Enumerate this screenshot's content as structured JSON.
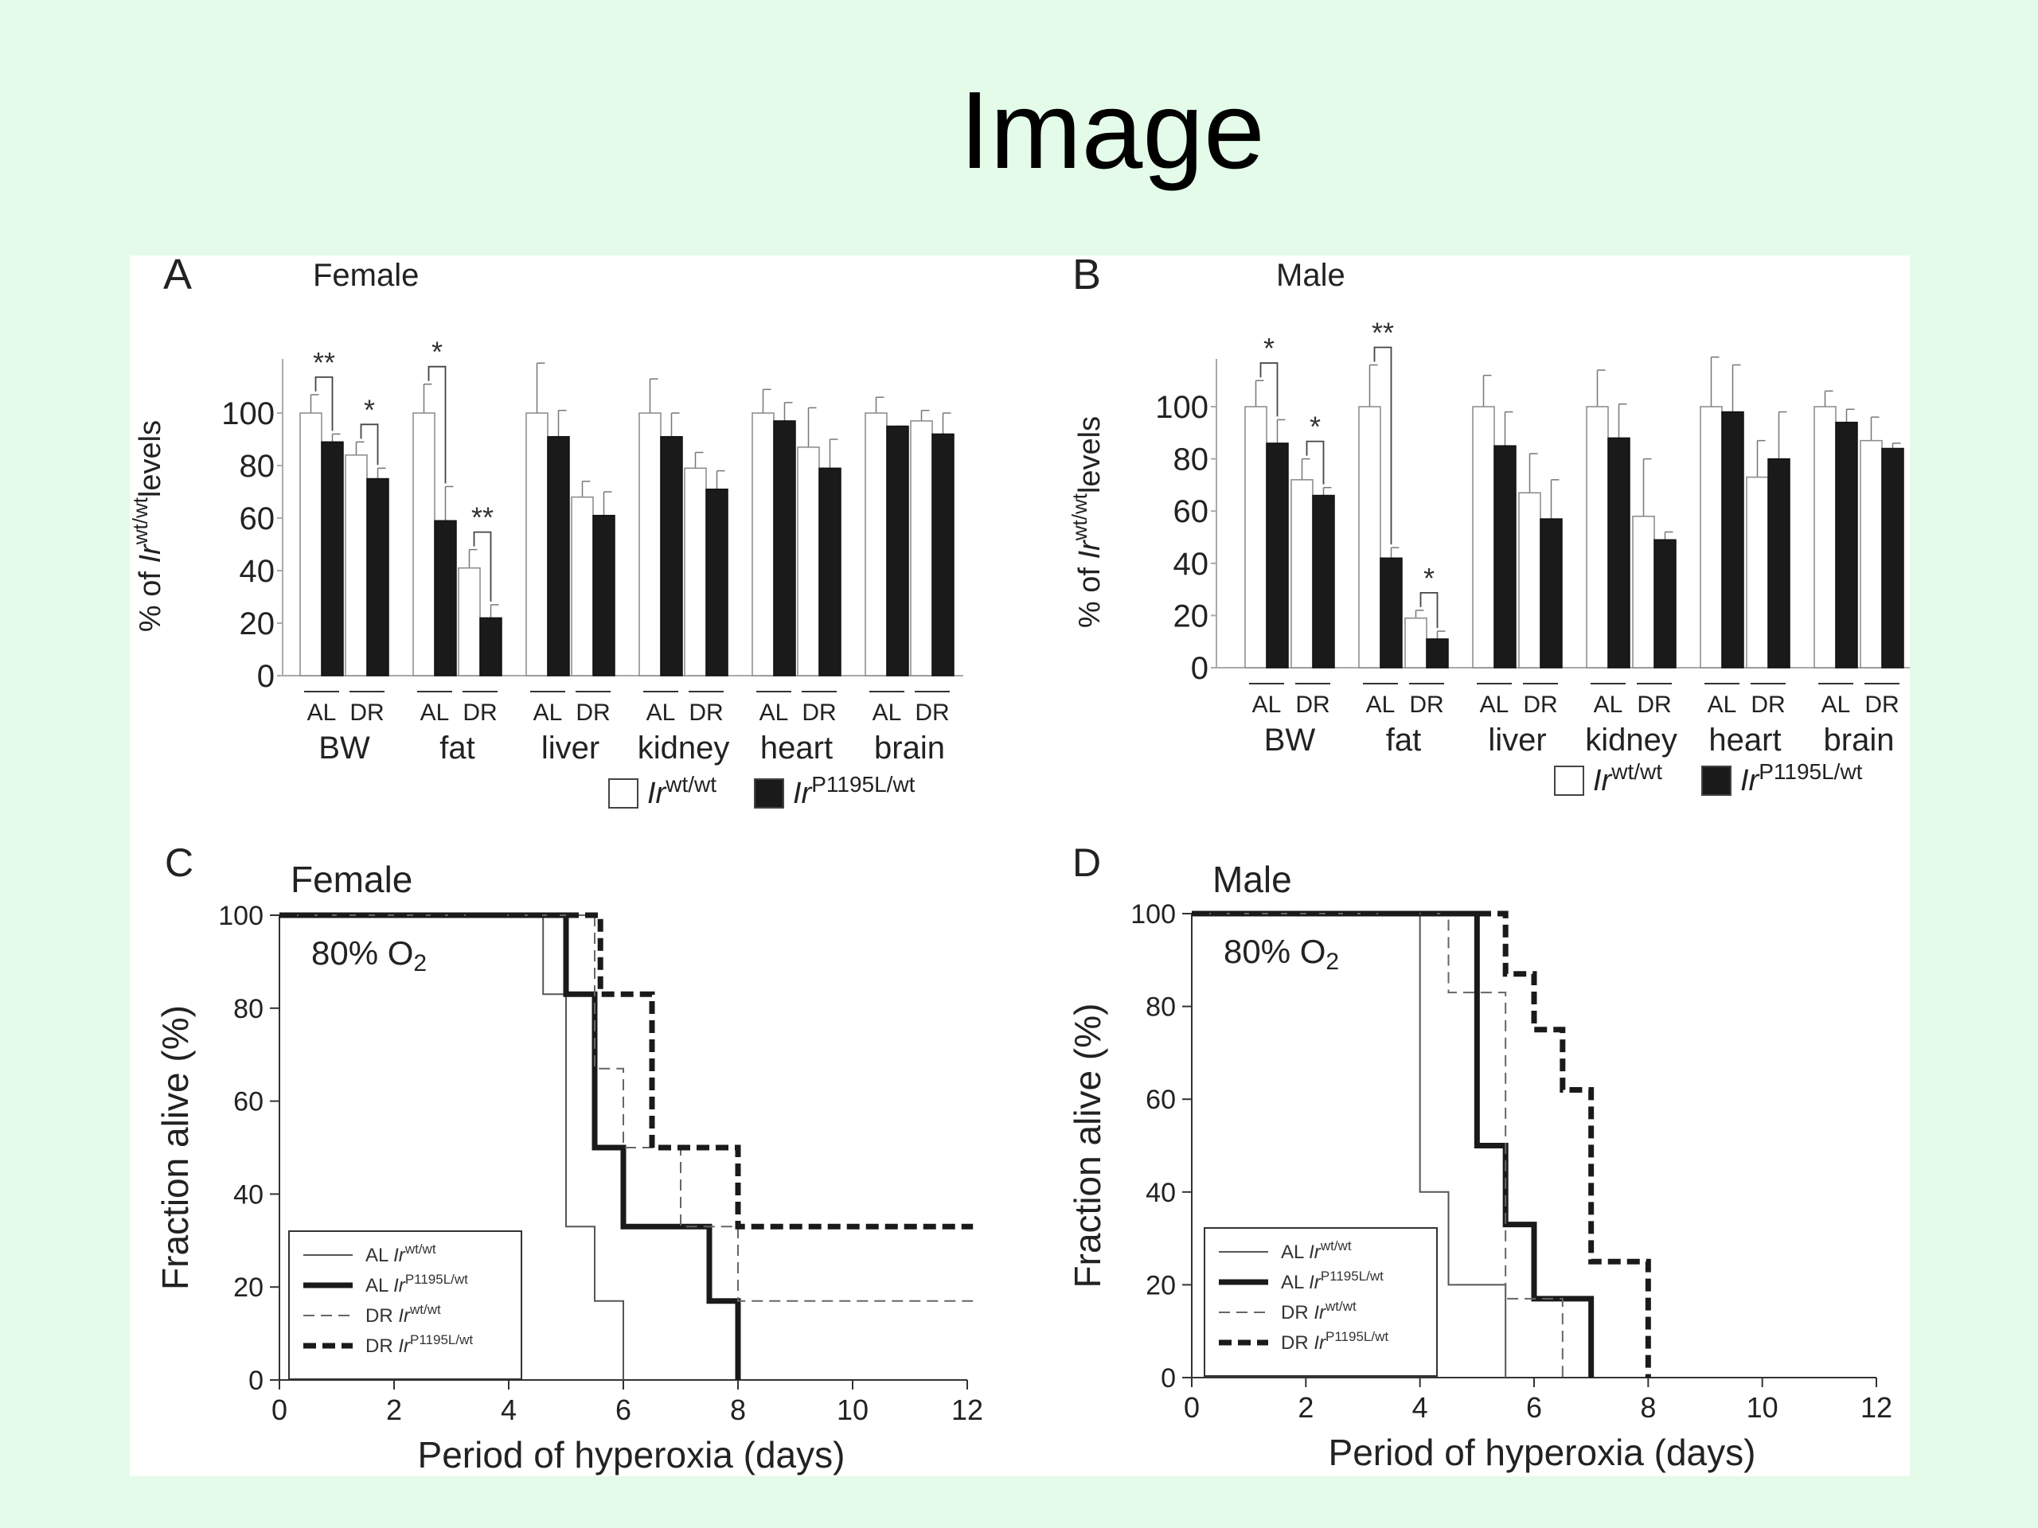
{
  "slide": {
    "title": "Image"
  },
  "chart_data": [
    {
      "panel": "A",
      "type": "bar",
      "title": "Female",
      "ylabel_parts": [
        "% of ",
        "Ir",
        "wt/wt",
        "levels"
      ],
      "ylim": [
        0,
        120
      ],
      "yticks": [
        0,
        20,
        40,
        60,
        80,
        100
      ],
      "groups": [
        "BW",
        "fat",
        "liver",
        "kidney",
        "heart",
        "brain"
      ],
      "conditions": [
        "AL",
        "DR"
      ],
      "series": [
        {
          "name_parts": [
            "Ir",
            "wt/wt"
          ],
          "fill": "#ffffff",
          "values": [
            [
              100,
              84
            ],
            [
              100,
              41
            ],
            [
              100,
              68
            ],
            [
              100,
              79
            ],
            [
              100,
              87
            ],
            [
              100,
              97
            ]
          ],
          "errors": [
            [
              7,
              5
            ],
            [
              11,
              7
            ],
            [
              19,
              6
            ],
            [
              13,
              6
            ],
            [
              9,
              15
            ],
            [
              6,
              4
            ]
          ]
        },
        {
          "name_parts": [
            "Ir",
            "P1195L/wt"
          ],
          "fill": "#1a1a1a",
          "values": [
            [
              89,
              75
            ],
            [
              59,
              22
            ],
            [
              91,
              61
            ],
            [
              91,
              71
            ],
            [
              97,
              79
            ],
            [
              95,
              92
            ]
          ],
          "errors": [
            [
              3,
              4
            ],
            [
              13,
              5
            ],
            [
              10,
              9
            ],
            [
              9,
              7
            ],
            [
              7,
              11
            ],
            [
              0,
              8
            ]
          ]
        }
      ],
      "significance": [
        {
          "group": 0,
          "cond": 0,
          "label": "**"
        },
        {
          "group": 0,
          "cond": 1,
          "label": "*"
        },
        {
          "group": 1,
          "cond": 0,
          "label": "*"
        },
        {
          "group": 1,
          "cond": 1,
          "label": "**"
        }
      ]
    },
    {
      "panel": "B",
      "type": "bar",
      "title": "Male",
      "ylabel_parts": [
        "% of ",
        "Ir",
        "wt/wt",
        "levels"
      ],
      "ylim": [
        0,
        120
      ],
      "yticks": [
        0,
        20,
        40,
        60,
        80,
        100
      ],
      "groups": [
        "BW",
        "fat",
        "liver",
        "kidney",
        "heart",
        "brain"
      ],
      "conditions": [
        "AL",
        "DR"
      ],
      "series": [
        {
          "name_parts": [
            "Ir",
            "wt/wt"
          ],
          "fill": "#ffffff",
          "values": [
            [
              100,
              72
            ],
            [
              100,
              19
            ],
            [
              100,
              67
            ],
            [
              100,
              58
            ],
            [
              100,
              73
            ],
            [
              100,
              87
            ]
          ],
          "errors": [
            [
              10,
              8
            ],
            [
              16,
              3
            ],
            [
              12,
              15
            ],
            [
              14,
              22
            ],
            [
              19,
              14
            ],
            [
              6,
              9
            ]
          ]
        },
        {
          "name_parts": [
            "Ir",
            "P1195L/wt"
          ],
          "fill": "#1a1a1a",
          "values": [
            [
              86,
              66
            ],
            [
              42,
              11
            ],
            [
              85,
              57
            ],
            [
              88,
              49
            ],
            [
              98,
              80
            ],
            [
              94,
              84
            ]
          ],
          "errors": [
            [
              9,
              3
            ],
            [
              4,
              3
            ],
            [
              13,
              15
            ],
            [
              13,
              3
            ],
            [
              18,
              18
            ],
            [
              5,
              2
            ]
          ]
        }
      ],
      "significance": [
        {
          "group": 0,
          "cond": 0,
          "label": "*"
        },
        {
          "group": 0,
          "cond": 1,
          "label": "*"
        },
        {
          "group": 1,
          "cond": 0,
          "label": "**"
        },
        {
          "group": 1,
          "cond": 1,
          "label": "*"
        }
      ]
    },
    {
      "panel": "C",
      "type": "line",
      "title": "Female",
      "annotation": "80% O",
      "annotation_sub": "2",
      "xlabel": "Period of hyperoxia (days)",
      "ylabel": "Fraction alive (%)",
      "xlim": [
        0,
        12
      ],
      "ylim": [
        0,
        100
      ],
      "xticks": [
        0,
        2,
        4,
        6,
        8,
        10,
        12
      ],
      "yticks": [
        0,
        20,
        40,
        60,
        80,
        100
      ],
      "series": [
        {
          "cond": "AL",
          "genotype": "wt/wt",
          "style": "thin",
          "x": [
            0,
            4.6,
            5,
            5.5,
            6
          ],
          "y": [
            100,
            83,
            33,
            17,
            0
          ]
        },
        {
          "cond": "AL",
          "genotype": "P1195L/wt",
          "style": "thick",
          "x": [
            0,
            5,
            5.5,
            6,
            7.5,
            8
          ],
          "y": [
            100,
            83,
            50,
            33,
            17,
            0
          ]
        },
        {
          "cond": "DR",
          "genotype": "wt/wt",
          "style": "thin-dashed",
          "x": [
            0,
            5.5,
            6,
            7,
            8,
            12.1
          ],
          "y": [
            100,
            67,
            50,
            33,
            17,
            17
          ]
        },
        {
          "cond": "DR",
          "genotype": "P1195L/wt",
          "style": "thick-dashed",
          "x": [
            0,
            5.6,
            6.5,
            8,
            12.1
          ],
          "y": [
            100,
            83,
            50,
            33,
            33
          ]
        }
      ],
      "legend": [
        {
          "cond": "AL ",
          "gene": "Ir",
          "genotype": "wt/wt",
          "style": "thin"
        },
        {
          "cond": "AL ",
          "gene": "Ir",
          "genotype": "P1195L/wt",
          "style": "thick"
        },
        {
          "cond": "DR ",
          "gene": "Ir",
          "genotype": "wt/wt",
          "style": "thin-dashed"
        },
        {
          "cond": "DR ",
          "gene": "Ir",
          "genotype": "P1195L/wt",
          "style": "thick-dashed"
        }
      ]
    },
    {
      "panel": "D",
      "type": "line",
      "title": "Male",
      "annotation": "80% O",
      "annotation_sub": "2",
      "xlabel": "Period of hyperoxia (days)",
      "ylabel": "Fraction alive (%)",
      "xlim": [
        0,
        12
      ],
      "ylim": [
        0,
        100
      ],
      "xticks": [
        0,
        2,
        4,
        6,
        8,
        10,
        12
      ],
      "yticks": [
        0,
        20,
        40,
        60,
        80,
        100
      ],
      "series": [
        {
          "cond": "AL",
          "genotype": "wt/wt",
          "style": "thin",
          "x": [
            0,
            4,
            4.5,
            5.5
          ],
          "y": [
            100,
            40,
            20,
            0
          ]
        },
        {
          "cond": "AL",
          "genotype": "P1195L/wt",
          "style": "thick",
          "x": [
            0,
            5,
            5.5,
            6,
            7
          ],
          "y": [
            100,
            50,
            33,
            17,
            0
          ]
        },
        {
          "cond": "DR",
          "genotype": "wt/wt",
          "style": "thin-dashed",
          "x": [
            0,
            4.5,
            5.5,
            6.5
          ],
          "y": [
            100,
            83,
            17,
            0
          ]
        },
        {
          "cond": "DR",
          "genotype": "P1195L/wt",
          "style": "thick-dashed",
          "x": [
            0,
            5.5,
            6,
            6.5,
            7,
            8
          ],
          "y": [
            100,
            87,
            75,
            62,
            25,
            0
          ]
        }
      ],
      "legend": [
        {
          "cond": "AL ",
          "gene": "Ir",
          "genotype": "wt/wt",
          "style": "thin"
        },
        {
          "cond": "AL ",
          "gene": "Ir",
          "genotype": "P1195L/wt",
          "style": "thick"
        },
        {
          "cond": "DR ",
          "gene": "Ir",
          "genotype": "wt/wt",
          "style": "thin-dashed"
        },
        {
          "cond": "DR ",
          "gene": "Ir",
          "genotype": "P1195L/wt",
          "style": "thick-dashed"
        }
      ]
    }
  ]
}
